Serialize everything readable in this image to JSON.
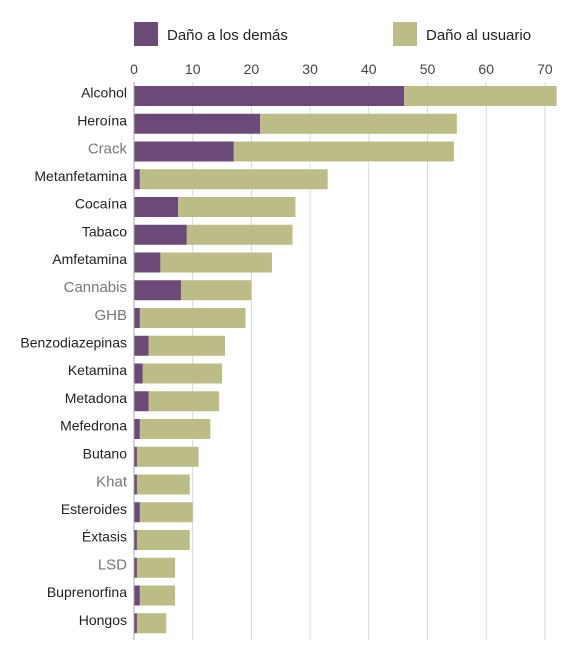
{
  "chart_data": {
    "type": "bar",
    "orientation": "horizontal",
    "stacked": true,
    "categories": [
      "Alcohol",
      "Heroína",
      "Crack",
      "Metanfetamina",
      "Cocaína",
      "Tabaco",
      "Amfetamina",
      "Cannabis",
      "GHB",
      "Benzodiazepinas",
      "Ketamina",
      "Metadona",
      "Mefedrona",
      "Butano",
      "Khat",
      "Esteroides",
      "Éxtasis",
      "LSD",
      "Buprenorfina",
      "Hongos"
    ],
    "series": [
      {
        "name": "Daño a los demás",
        "color": "#6b4a78",
        "values": [
          46,
          21.5,
          17,
          1,
          7.5,
          9,
          4.5,
          8,
          1,
          2.5,
          1.5,
          2.5,
          1,
          0.5,
          0.5,
          1,
          0.5,
          0.5,
          1,
          0.5
        ]
      },
      {
        "name": "Daño al usuario",
        "color": "#bcbc86",
        "values": [
          26,
          33.5,
          37.5,
          32,
          20,
          18,
          19,
          12,
          18,
          13,
          13.5,
          12,
          12,
          10.5,
          9,
          9,
          9,
          6.5,
          6,
          5
        ]
      }
    ],
    "xlim": [
      0,
      75
    ],
    "xticks": [
      0,
      10,
      20,
      30,
      40,
      50,
      60,
      70
    ],
    "title": "",
    "xlabel": "",
    "ylabel": "",
    "grid": true,
    "legend_position": "top"
  }
}
